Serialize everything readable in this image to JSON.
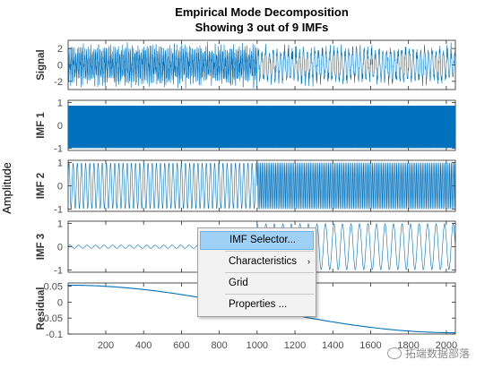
{
  "chart_data": {
    "type": "line",
    "title": "Empirical Mode Decomposition",
    "subtitle": "Showing 3 out of 9 IMFs",
    "ylabel": "Amplitude",
    "x_range": [
      1,
      2048
    ],
    "x_ticks": [
      200,
      400,
      600,
      800,
      1000,
      1200,
      1400,
      1600,
      1800,
      2000
    ],
    "line_color": "#0072BD",
    "panels": [
      {
        "name": "Signal",
        "ylim": [
          -3,
          3
        ],
        "yticks": [
          2,
          0,
          -2
        ],
        "segments": [
          {
            "x_start": 1,
            "x_end": 1000,
            "period": 8,
            "amplitude": 1.6,
            "noise": 0.9
          },
          {
            "x_start": 1000,
            "x_end": 2048,
            "period": 20,
            "amplitude": 1.8,
            "noise": 0.5
          }
        ]
      },
      {
        "name": "IMF 1",
        "ylim": [
          -1.1,
          1.1
        ],
        "yticks": [
          1,
          0,
          -1
        ],
        "segments": [
          {
            "x_start": 1,
            "x_end": 1000,
            "period": 3,
            "amplitude": 1.0
          },
          {
            "x_start": 1000,
            "x_end": 2048,
            "period": 3,
            "amplitude": 1.0
          }
        ]
      },
      {
        "name": "IMF 2",
        "ylim": [
          -1.1,
          1.1
        ],
        "yticks": [
          1,
          0,
          -1
        ],
        "segments": [
          {
            "x_start": 1,
            "x_end": 1000,
            "period": 22,
            "amplitude": 1.0
          },
          {
            "x_start": 1000,
            "x_end": 2048,
            "period": 8,
            "amplitude": 1.0
          }
        ]
      },
      {
        "name": "IMF 3",
        "ylim": [
          -1.1,
          1.1
        ],
        "yticks": [
          1,
          0,
          -1
        ],
        "segments": [
          {
            "x_start": 1,
            "x_end": 1000,
            "period": 45,
            "amplitude": 0.07
          },
          {
            "x_start": 1000,
            "x_end": 2048,
            "period": 45,
            "amplitude": 1.0
          }
        ]
      },
      {
        "name": "Residual",
        "ylim": [
          -0.1,
          0.06
        ],
        "yticks": [
          0.05,
          0,
          -0.05,
          -0.1
        ],
        "trend": {
          "start": 0.053,
          "end": -0.096,
          "shape": "cosine"
        }
      }
    ]
  },
  "context_menu": {
    "items": [
      {
        "label": "IMF Selector...",
        "highlighted": true,
        "submenu": false
      },
      {
        "label": "Characteristics",
        "highlighted": false,
        "submenu": true
      },
      {
        "label": "Grid",
        "highlighted": false,
        "submenu": false
      },
      {
        "label": "Properties ...",
        "highlighted": false,
        "submenu": false
      }
    ],
    "submenu_arrow": "›"
  },
  "watermark": {
    "text": "拓端数据部落",
    "icon": "wechat-icon"
  }
}
